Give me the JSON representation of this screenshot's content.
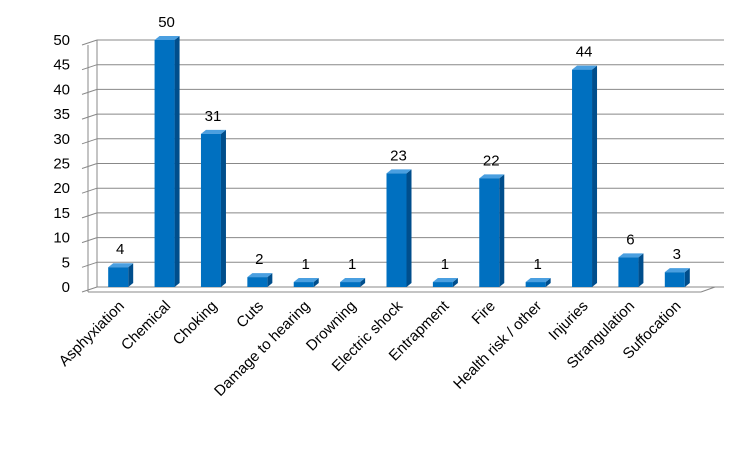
{
  "chart_data": {
    "type": "bar",
    "categories": [
      "Asphyxiation",
      "Chemical",
      "Choking",
      "Cuts",
      "Damage to hearing",
      "Drowning",
      "Electric shock",
      "Entrapment",
      "Fire",
      "Health risk / other",
      "Injuries",
      "Strangulation",
      "Suffocation"
    ],
    "values": [
      4,
      50,
      31,
      2,
      1,
      1,
      23,
      1,
      22,
      1,
      44,
      6,
      3
    ],
    "color": "#0070c0",
    "ylim": [
      0,
      50
    ],
    "yticks": [
      0,
      5,
      10,
      15,
      20,
      25,
      30,
      35,
      40,
      45,
      50
    ],
    "grid": true
  }
}
